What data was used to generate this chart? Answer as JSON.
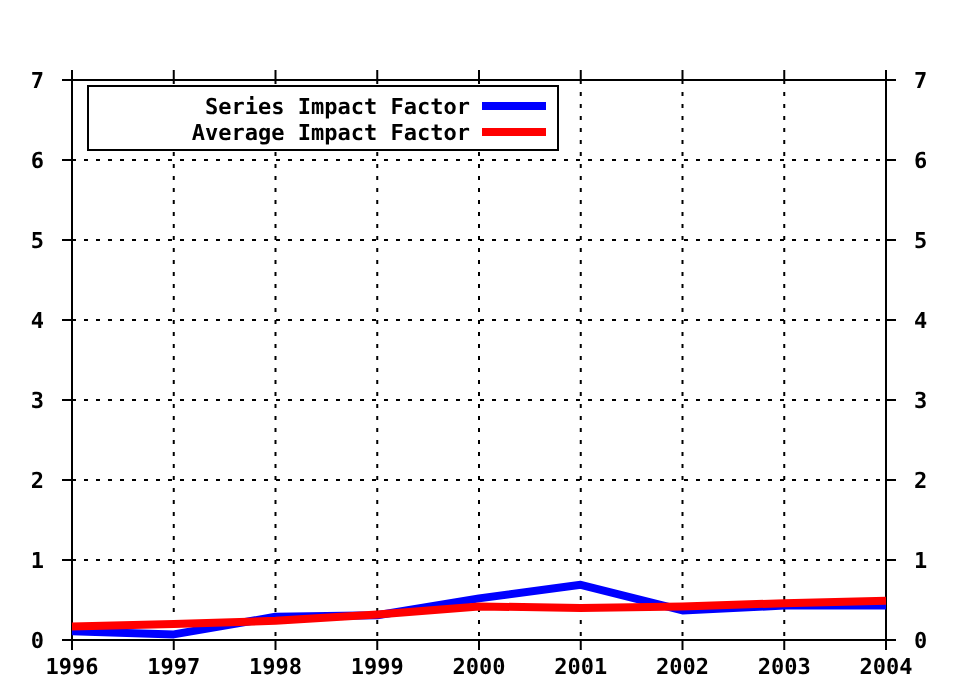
{
  "chart_data": {
    "type": "line",
    "x": [
      1996,
      1997,
      1998,
      1999,
      2000,
      2001,
      2002,
      2003,
      2004
    ],
    "xlim": [
      1996,
      2004
    ],
    "xticks": [
      1996,
      1997,
      1998,
      1999,
      2000,
      2001,
      2002,
      2003,
      2004
    ],
    "ylim": [
      0,
      7
    ],
    "yticks": [
      0,
      1,
      2,
      3,
      4,
      5,
      6,
      7
    ],
    "y2lim": [
      0,
      7
    ],
    "y2ticks": [
      0,
      1,
      2,
      3,
      4,
      5,
      6,
      7
    ],
    "grid": true,
    "legend": "top left",
    "line_style": "solid",
    "series": [
      {
        "name": "Series Impact Factor",
        "color": "#0000ff",
        "values": [
          0.11,
          0.07,
          0.29,
          0.31,
          0.52,
          0.69,
          0.37,
          0.43,
          0.43
        ]
      },
      {
        "name": "Average Impact Factor",
        "color": "#ff0000",
        "values": [
          0.17,
          0.2,
          0.24,
          0.32,
          0.42,
          0.4,
          0.42,
          0.46,
          0.49
        ]
      }
    ]
  }
}
